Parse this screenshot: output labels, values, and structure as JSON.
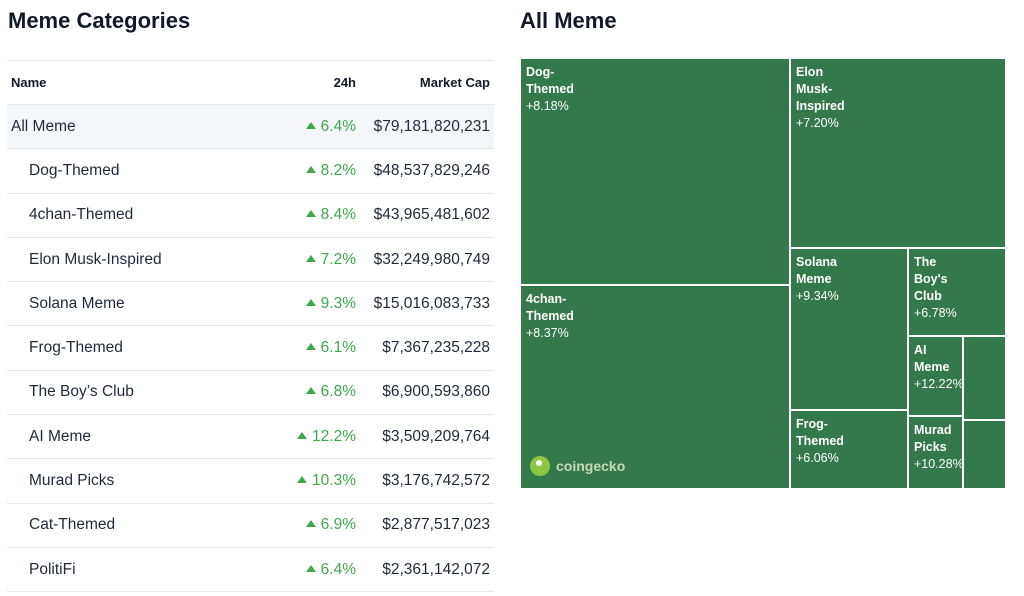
{
  "left_title": "Meme Categories",
  "right_title": "All Meme",
  "table": {
    "columns": {
      "name": "Name",
      "change": "24h",
      "market_cap": "Market Cap"
    },
    "rows": [
      {
        "name": "All Meme",
        "change": "6.4%",
        "market_cap": "$79,181,820,231"
      },
      {
        "name": "Dog-Themed",
        "change": "8.2%",
        "market_cap": "$48,537,829,246"
      },
      {
        "name": "4chan-Themed",
        "change": "8.4%",
        "market_cap": "$43,965,481,602"
      },
      {
        "name": "Elon Musk-Inspired",
        "change": "7.2%",
        "market_cap": "$32,249,980,749"
      },
      {
        "name": "Solana Meme",
        "change": "9.3%",
        "market_cap": "$15,016,083,733"
      },
      {
        "name": "Frog-Themed",
        "change": "6.1%",
        "market_cap": "$7,367,235,228"
      },
      {
        "name": "The Boy’s Club",
        "change": "6.8%",
        "market_cap": "$6,900,593,860"
      },
      {
        "name": "AI Meme",
        "change": "12.2%",
        "market_cap": "$3,509,209,764"
      },
      {
        "name": "Murad Picks",
        "change": "10.3%",
        "market_cap": "$3,176,742,572"
      },
      {
        "name": "Cat-Themed",
        "change": "6.9%",
        "market_cap": "$2,877,517,023"
      },
      {
        "name": "PolitiFi",
        "change": "6.4%",
        "market_cap": "$2,361,142,072"
      }
    ]
  },
  "chart_data": {
    "type": "treemap",
    "title": "All Meme",
    "tiles": [
      {
        "label": "Dog-\nThemed",
        "change": "+8.18%",
        "market_cap": 48537829246
      },
      {
        "label": "4chan-\nThemed",
        "change": "+8.37%",
        "market_cap": 43965481602
      },
      {
        "label": "Elon\nMusk-\nInspired",
        "change": "+7.20%",
        "market_cap": 32249980749
      },
      {
        "label": "Solana\nMeme",
        "change": "+9.34%",
        "market_cap": 15016083733
      },
      {
        "label": "Frog-\nThemed",
        "change": "+6.06%",
        "market_cap": 7367235228
      },
      {
        "label": "The\nBoy's\nClub",
        "change": "+6.78%",
        "market_cap": 6900593860
      },
      {
        "label": "AI\nMeme",
        "change": "+12.22%",
        "market_cap": 3509209764
      },
      {
        "label": "Murad\nPicks",
        "change": "+10.28%",
        "market_cap": 3176742572
      },
      {
        "label": "",
        "change": "",
        "market_cap": 2877517023
      },
      {
        "label": "",
        "change": "",
        "market_cap": 2361142072
      }
    ],
    "colors": {
      "tile": "#34794a",
      "border": "#ffffff",
      "positive": "#3fa84a"
    }
  },
  "watermark": {
    "text": "coingecko"
  }
}
